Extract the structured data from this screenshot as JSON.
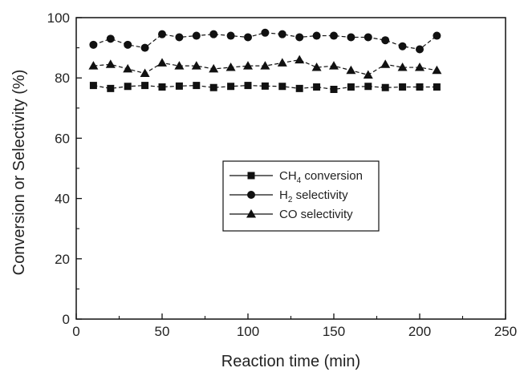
{
  "chart_data": {
    "type": "line",
    "title": "",
    "xlabel": "Reaction time (min)",
    "ylabel": "Conversion or Selectivity (%)",
    "xlim": [
      0,
      250
    ],
    "ylim": [
      0,
      100
    ],
    "x_ticks": [
      0,
      50,
      100,
      150,
      200,
      250
    ],
    "y_ticks": [
      0,
      20,
      40,
      60,
      80,
      100
    ],
    "grid": false,
    "legend_position": "center",
    "x": [
      10,
      20,
      30,
      40,
      50,
      60,
      70,
      80,
      90,
      100,
      110,
      120,
      130,
      140,
      150,
      160,
      170,
      180,
      190,
      200,
      210
    ],
    "series": [
      {
        "name": "CH4 conversion",
        "label_main": "CH",
        "label_sub": "4",
        "label_rest": " conversion",
        "marker": "square",
        "values": [
          77.5,
          76.5,
          77.2,
          77.5,
          77.0,
          77.3,
          77.5,
          76.8,
          77.2,
          77.5,
          77.3,
          77.2,
          76.5,
          77.0,
          76.2,
          77.0,
          77.2,
          76.8,
          77.0,
          77.0,
          77.0
        ]
      },
      {
        "name": "H2 selectivity",
        "label_main": "H",
        "label_sub": "2",
        "label_rest": " selectivity",
        "marker": "circle",
        "values": [
          91.0,
          93.0,
          91.0,
          90.0,
          94.5,
          93.5,
          94.0,
          94.5,
          94.0,
          93.5,
          95.0,
          94.5,
          93.5,
          94.0,
          94.0,
          93.5,
          93.5,
          92.5,
          90.5,
          89.5,
          94.0
        ]
      },
      {
        "name": "CO selectivity",
        "label_main": "CO selectivity",
        "label_sub": "",
        "label_rest": "",
        "marker": "triangle",
        "values": [
          84.0,
          84.5,
          83.0,
          81.5,
          85.0,
          84.0,
          84.0,
          83.0,
          83.5,
          84.0,
          84.0,
          85.0,
          86.0,
          83.5,
          84.0,
          82.5,
          81.0,
          84.5,
          83.5,
          83.5,
          82.5
        ]
      }
    ]
  }
}
